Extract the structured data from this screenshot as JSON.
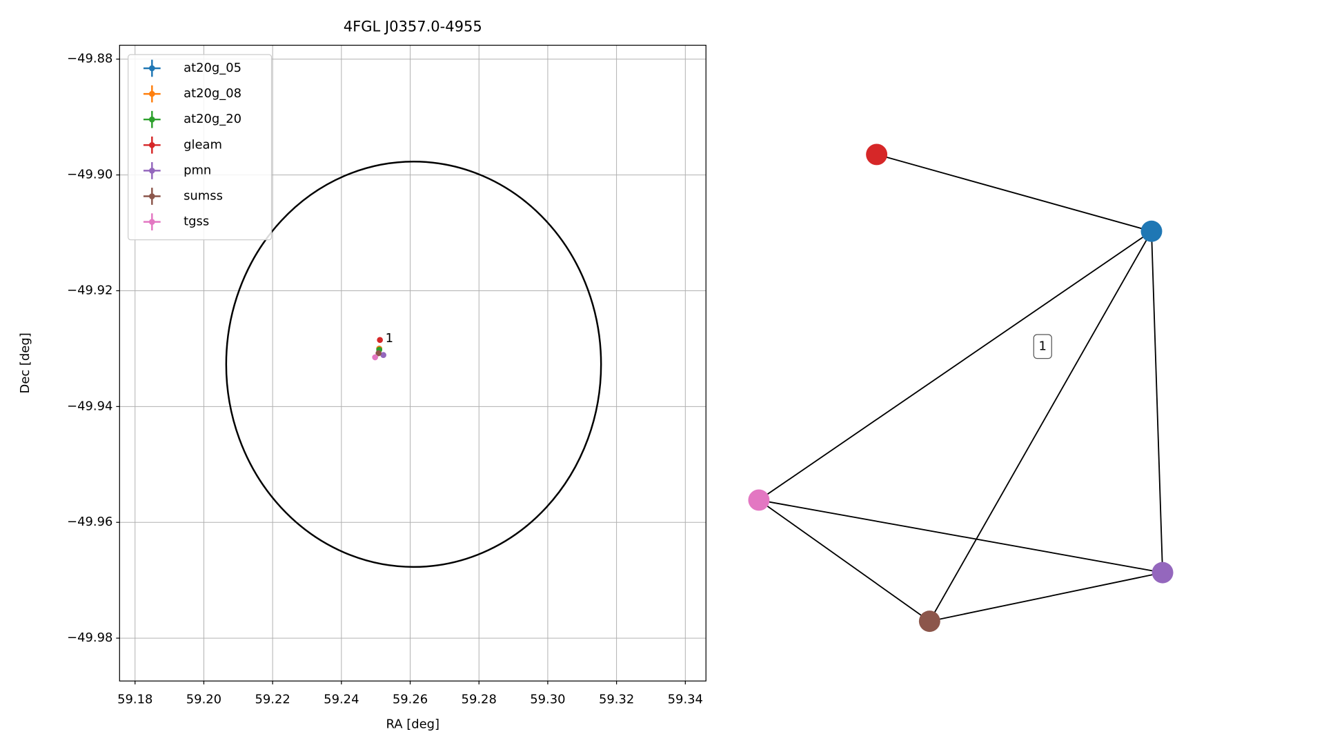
{
  "chart_data": [
    {
      "type": "scatter",
      "title": "4FGL J0357.0-4955",
      "x_label": "RA [deg]",
      "y_label": "Dec [deg]",
      "xlim": [
        59.1755,
        59.346
      ],
      "ylim": [
        -49.9874,
        -49.8776
      ],
      "xticks": [
        59.18,
        59.2,
        59.22,
        59.24,
        59.26,
        59.28,
        59.3,
        59.32,
        59.34
      ],
      "xtick_labels": [
        "59.18",
        "59.20",
        "59.22",
        "59.24",
        "59.26",
        "59.28",
        "59.30",
        "59.32",
        "59.34"
      ],
      "yticks": [
        {
          "value": -49.88,
          "label": "−49.88"
        },
        {
          "value": -49.9,
          "label": "−49.90"
        },
        {
          "value": -49.92,
          "label": "−49.92"
        },
        {
          "value": -49.94,
          "label": "−49.94"
        },
        {
          "value": -49.96,
          "label": "−49.96"
        },
        {
          "value": -49.98,
          "label": "−49.98"
        }
      ],
      "grid": true,
      "legend": "upper left",
      "series": [
        {
          "name": "at20g_05",
          "color": "#1f77b4",
          "x": [
            59.251
          ],
          "y": [
            -49.93
          ]
        },
        {
          "name": "at20g_08",
          "color": "#ff7f0e",
          "x": [
            59.251
          ],
          "y": [
            -49.93
          ]
        },
        {
          "name": "at20g_20",
          "color": "#2ca02c",
          "x": [
            59.251
          ],
          "y": [
            -49.9302
          ]
        },
        {
          "name": "gleam",
          "color": "#d62728",
          "x": [
            59.2512
          ],
          "y": [
            -49.9285
          ]
        },
        {
          "name": "pmn",
          "color": "#9467bd",
          "x": [
            59.2522
          ],
          "y": [
            -49.9311
          ]
        },
        {
          "name": "sumss",
          "color": "#8c564b",
          "x": [
            59.2508
          ],
          "y": [
            -49.9308
          ]
        },
        {
          "name": "tgss",
          "color": "#e377c2",
          "x": [
            59.2498
          ],
          "y": [
            -49.9315
          ]
        }
      ],
      "ellipse": {
        "x": 59.261,
        "y": -49.9327,
        "rx": 0.0545,
        "ry": 0.035,
        "color": "#000000"
      },
      "annotation": {
        "text": "1",
        "x": 59.2528,
        "y": -49.9283
      }
    },
    {
      "type": "graph",
      "nodes": [
        "#d62728",
        "#1f77b4",
        "#e377c2",
        "#8c564b",
        "#9467bd"
      ],
      "edges": [
        [
          0,
          1
        ],
        [
          1,
          2
        ],
        [
          1,
          3
        ],
        [
          1,
          4
        ],
        [
          2,
          3
        ],
        [
          2,
          4
        ],
        [
          3,
          4
        ]
      ],
      "label": "1"
    }
  ]
}
